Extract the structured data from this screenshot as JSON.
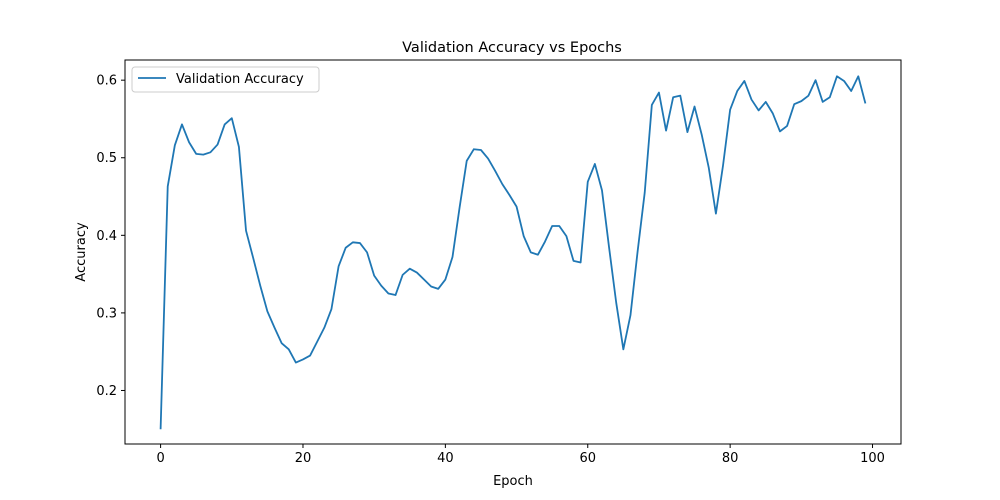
{
  "chart_data": {
    "type": "line",
    "title": "Validation Accuracy vs Epochs",
    "xlabel": "Epoch",
    "ylabel": "Accuracy",
    "xlim": [
      -5,
      104
    ],
    "ylim": [
      0.131,
      0.626
    ],
    "xticks": [
      0,
      20,
      40,
      60,
      80,
      100
    ],
    "yticks": [
      0.2,
      0.3,
      0.4,
      0.5,
      0.6
    ],
    "xtick_labels": [
      "0",
      "20",
      "40",
      "60",
      "80",
      "100"
    ],
    "ytick_labels": [
      "0.2",
      "0.3",
      "0.4",
      "0.5",
      "0.6"
    ],
    "grid": false,
    "legend_position": "top-left",
    "series": [
      {
        "name": "Validation Accuracy",
        "color": "#1f77b4",
        "x": [
          0,
          1,
          2,
          3,
          4,
          5,
          6,
          7,
          8,
          9,
          10,
          11,
          12,
          13,
          14,
          15,
          16,
          17,
          18,
          19,
          20,
          21,
          22,
          23,
          24,
          25,
          26,
          27,
          28,
          29,
          30,
          31,
          32,
          33,
          34,
          35,
          36,
          37,
          38,
          39,
          40,
          41,
          42,
          43,
          44,
          45,
          46,
          47,
          48,
          49,
          50,
          51,
          52,
          53,
          54,
          55,
          56,
          57,
          58,
          59,
          60,
          61,
          62,
          63,
          64,
          65,
          66,
          67,
          68,
          69,
          70,
          71,
          72,
          73,
          74,
          75,
          76,
          77,
          78,
          79,
          80,
          81,
          82,
          83,
          84,
          85,
          86,
          87,
          88,
          89,
          90,
          91,
          92,
          93,
          94,
          95,
          96,
          97,
          98,
          99
        ],
        "values": [
          0.15,
          0.463,
          0.516,
          0.543,
          0.52,
          0.505,
          0.504,
          0.507,
          0.517,
          0.543,
          0.551,
          0.514,
          0.406,
          0.371,
          0.335,
          0.302,
          0.281,
          0.261,
          0.253,
          0.236,
          0.24,
          0.245,
          0.263,
          0.281,
          0.305,
          0.36,
          0.384,
          0.391,
          0.39,
          0.378,
          0.348,
          0.335,
          0.325,
          0.323,
          0.349,
          0.357,
          0.352,
          0.343,
          0.334,
          0.331,
          0.343,
          0.372,
          0.436,
          0.496,
          0.511,
          0.51,
          0.499,
          0.483,
          0.466,
          0.452,
          0.437,
          0.399,
          0.378,
          0.375,
          0.392,
          0.412,
          0.412,
          0.399,
          0.367,
          0.365,
          0.469,
          0.492,
          0.458,
          0.384,
          0.313,
          0.253,
          0.297,
          0.379,
          0.455,
          0.568,
          0.584,
          0.535,
          0.578,
          0.58,
          0.533,
          0.566,
          0.53,
          0.487,
          0.428,
          0.49,
          0.562,
          0.586,
          0.599,
          0.575,
          0.561,
          0.572,
          0.557,
          0.534,
          0.541,
          0.569,
          0.573,
          0.58,
          0.6,
          0.572,
          0.578,
          0.605,
          0.599,
          0.586,
          0.605,
          0.57
        ]
      }
    ]
  }
}
